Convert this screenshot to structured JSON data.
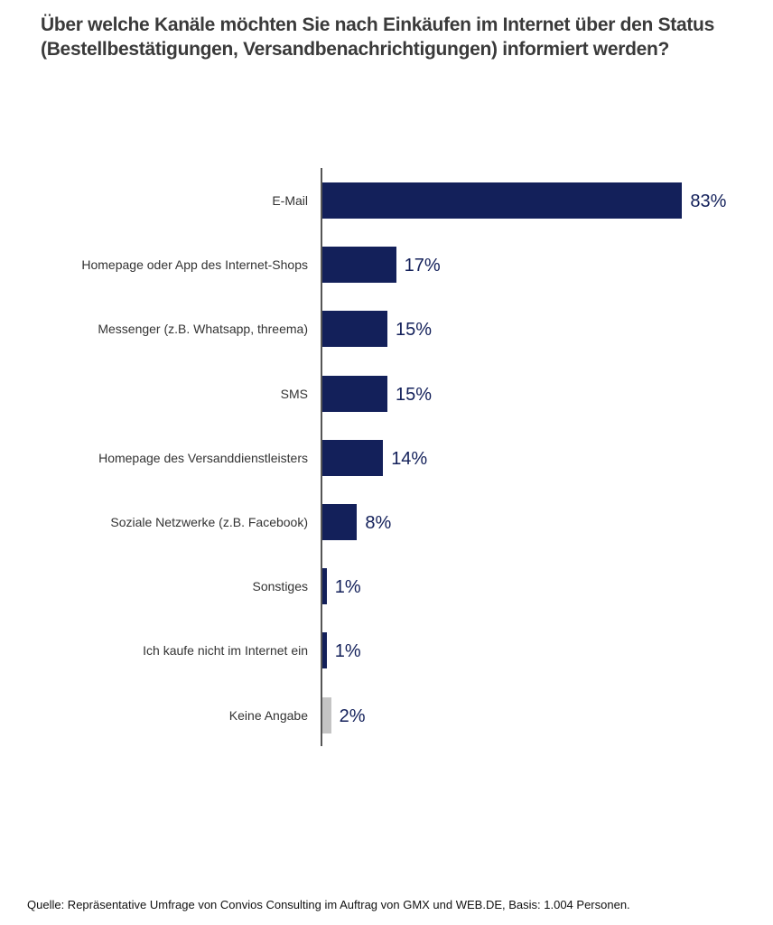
{
  "title": "Über welche Kanäle möchten Sie nach Einkäufen im Internet über den Status (Bestellbestätigungen, Versandbenachrichtigungen) informiert werden?",
  "source": "Quelle: Repräsentative Umfrage von Convios Consulting  im Auftrag von GMX und WEB.DE, Basis: 1.004 Personen.",
  "colors": {
    "bar": "#13205a",
    "bar_muted": "#c4c4c4",
    "label": "#13205a"
  },
  "chart_data": {
    "type": "bar",
    "orientation": "horizontal",
    "title": "Über welche Kanäle möchten Sie nach Einkäufen im Internet über den Status (Bestellbestätigungen, Versandbenachrichtigungen) informiert werden?",
    "xlabel": "",
    "ylabel": "",
    "grid": false,
    "unit": "%",
    "categories": [
      "E-Mail",
      "Homepage oder App des Internet-Shops",
      "Messenger (z.B. Whatsapp, threema)",
      "SMS",
      "Homepage des Versanddienstleisters",
      "Soziale Netzwerke (z.B. Facebook)",
      "Sonstiges",
      "Ich kaufe nicht im Internet ein",
      "Keine Angabe"
    ],
    "values": [
      83,
      17,
      15,
      15,
      14,
      8,
      1,
      1,
      2
    ],
    "value_labels": [
      "83%",
      "17%",
      "15%",
      "15%",
      "14%",
      "8%",
      "1%",
      "1%",
      "2%"
    ],
    "bar_colors": [
      "#13205a",
      "#13205a",
      "#13205a",
      "#13205a",
      "#13205a",
      "#13205a",
      "#13205a",
      "#13205a",
      "#c4c4c4"
    ]
  }
}
